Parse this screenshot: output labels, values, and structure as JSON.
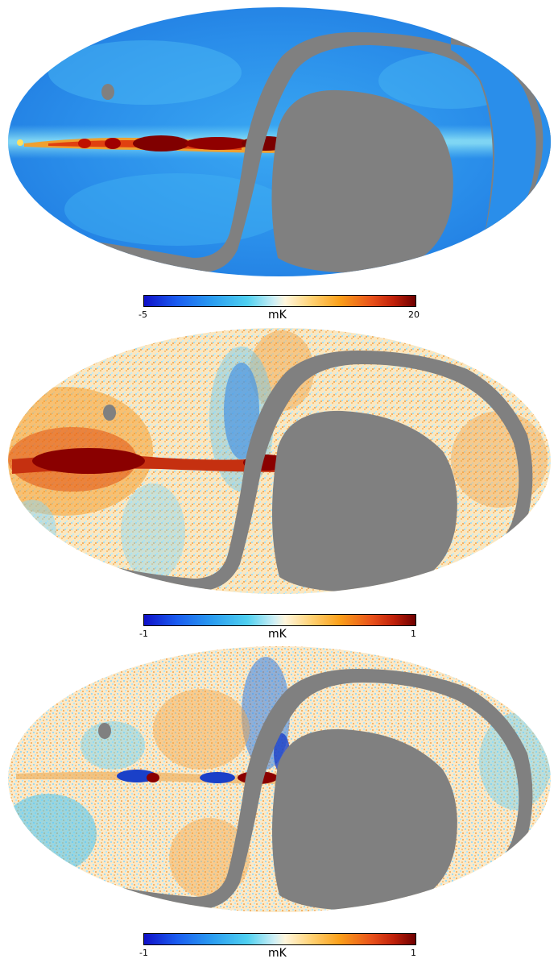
{
  "panels": [
    {
      "id": "panel-1",
      "colorbar": {
        "min_label": "-5",
        "max_label": "20",
        "unit": "mK"
      },
      "palette": "intensity"
    },
    {
      "id": "panel-2",
      "colorbar": {
        "min_label": "-1",
        "max_label": "1",
        "unit": "mK"
      },
      "palette": "polarization-q"
    },
    {
      "id": "panel-3",
      "colorbar": {
        "min_label": "-1",
        "max_label": "1",
        "unit": "mK"
      },
      "palette": "polarization-u"
    }
  ],
  "colors": {
    "mask": "#808080",
    "background": "#ffffff",
    "colorbar_low": "#1010c8",
    "colorbar_mid": "#fff6dc",
    "colorbar_high": "#6e0000"
  }
}
